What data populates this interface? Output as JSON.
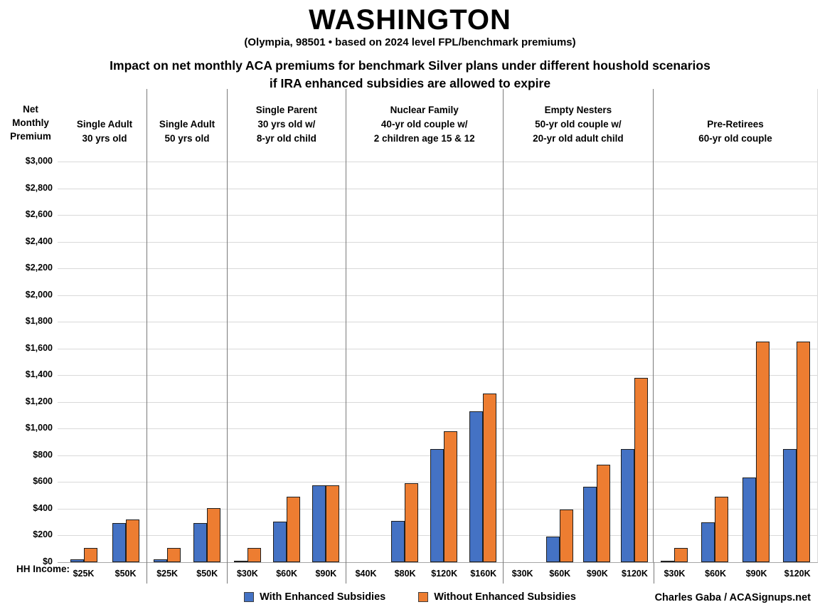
{
  "header": {
    "title": "WASHINGTON",
    "subtitle": "(Olympia, 98501 • based on 2024 level FPL/benchmark premiums)",
    "heading_line1": "Impact on net monthly ACA premiums for benchmark Silver plans under different houshold scenarios",
    "heading_line2": "if IRA enhanced subsidies are allowed to expire"
  },
  "chart_data": {
    "type": "bar",
    "title": "WASHINGTON",
    "y_axis_title": "Net\nMonthly\nPremium",
    "x_axis_title": "HH Income:",
    "ylim": [
      0,
      3000
    ],
    "grid": true,
    "legend_position": "bottom-center",
    "y_ticks": [
      {
        "value": 0,
        "label": "$0"
      },
      {
        "value": 200,
        "label": "$200"
      },
      {
        "value": 400,
        "label": "$400"
      },
      {
        "value": 600,
        "label": "$600"
      },
      {
        "value": 800,
        "label": "$800"
      },
      {
        "value": 1000,
        "label": "$1,000"
      },
      {
        "value": 1200,
        "label": "$1,200"
      },
      {
        "value": 1400,
        "label": "$1,400"
      },
      {
        "value": 1600,
        "label": "$1,600"
      },
      {
        "value": 1800,
        "label": "$1,800"
      },
      {
        "value": 2000,
        "label": "$2,000"
      },
      {
        "value": 2200,
        "label": "$2,200"
      },
      {
        "value": 2400,
        "label": "$2,400"
      },
      {
        "value": 2600,
        "label": "$2,600"
      },
      {
        "value": 2800,
        "label": "$2,800"
      },
      {
        "value": 3000,
        "label": "$3,000"
      }
    ],
    "series": [
      {
        "name": "With Enhanced Subsidies",
        "key": "with",
        "color": "#4472C4"
      },
      {
        "name": "Without Enhanced Subsidies",
        "key": "without",
        "color": "#ED7D31"
      }
    ],
    "panels": [
      {
        "label": "Single Adult\n30 yrs old",
        "width_hint": 119,
        "groups": [
          {
            "income": "$25K",
            "with": 20,
            "without": 105
          },
          {
            "income": "$50K",
            "with": 295,
            "without": 320
          }
        ]
      },
      {
        "label": "Single Adult\n50 yrs old",
        "width_hint": 113,
        "groups": [
          {
            "income": "$25K",
            "with": 20,
            "without": 105
          },
          {
            "income": "$50K",
            "with": 295,
            "without": 405
          }
        ]
      },
      {
        "label": "Single Parent\n30 yrs old w/\n8-yr old child",
        "width_hint": 167,
        "groups": [
          {
            "income": "$30K",
            "with": 5,
            "without": 105
          },
          {
            "income": "$60K",
            "with": 305,
            "without": 490
          },
          {
            "income": "$90K",
            "with": 575,
            "without": 575
          }
        ]
      },
      {
        "label": "Nuclear Family\n40-yr old couple w/\n2 children age 15 & 12",
        "width_hint": 222,
        "groups": [
          {
            "income": "$40K",
            "with": 0,
            "without": 0
          },
          {
            "income": "$80K",
            "with": 310,
            "without": 590
          },
          {
            "income": "$120K",
            "with": 845,
            "without": 980
          },
          {
            "income": "$160K",
            "with": 1130,
            "without": 1265
          }
        ]
      },
      {
        "label": "Empty Nesters\n50-yr old couple w/\n20-yr old adult child",
        "width_hint": 212,
        "groups": [
          {
            "income": "$30K",
            "with": 0,
            "without": 0
          },
          {
            "income": "$60K",
            "with": 190,
            "without": 395
          },
          {
            "income": "$90K",
            "with": 565,
            "without": 730
          },
          {
            "income": "$120K",
            "with": 845,
            "without": 1380
          }
        ]
      },
      {
        "label": "Pre-Retirees\n60-yr old couple",
        "width_hint": 232,
        "groups": [
          {
            "income": "$30K",
            "with": 5,
            "without": 105
          },
          {
            "income": "$60K",
            "with": 300,
            "without": 490
          },
          {
            "income": "$90K",
            "with": 635,
            "without": 1650
          },
          {
            "income": "$120K",
            "with": 845,
            "without": 1650
          }
        ]
      }
    ]
  },
  "credit": "Charles Gaba / ACASignups.net"
}
